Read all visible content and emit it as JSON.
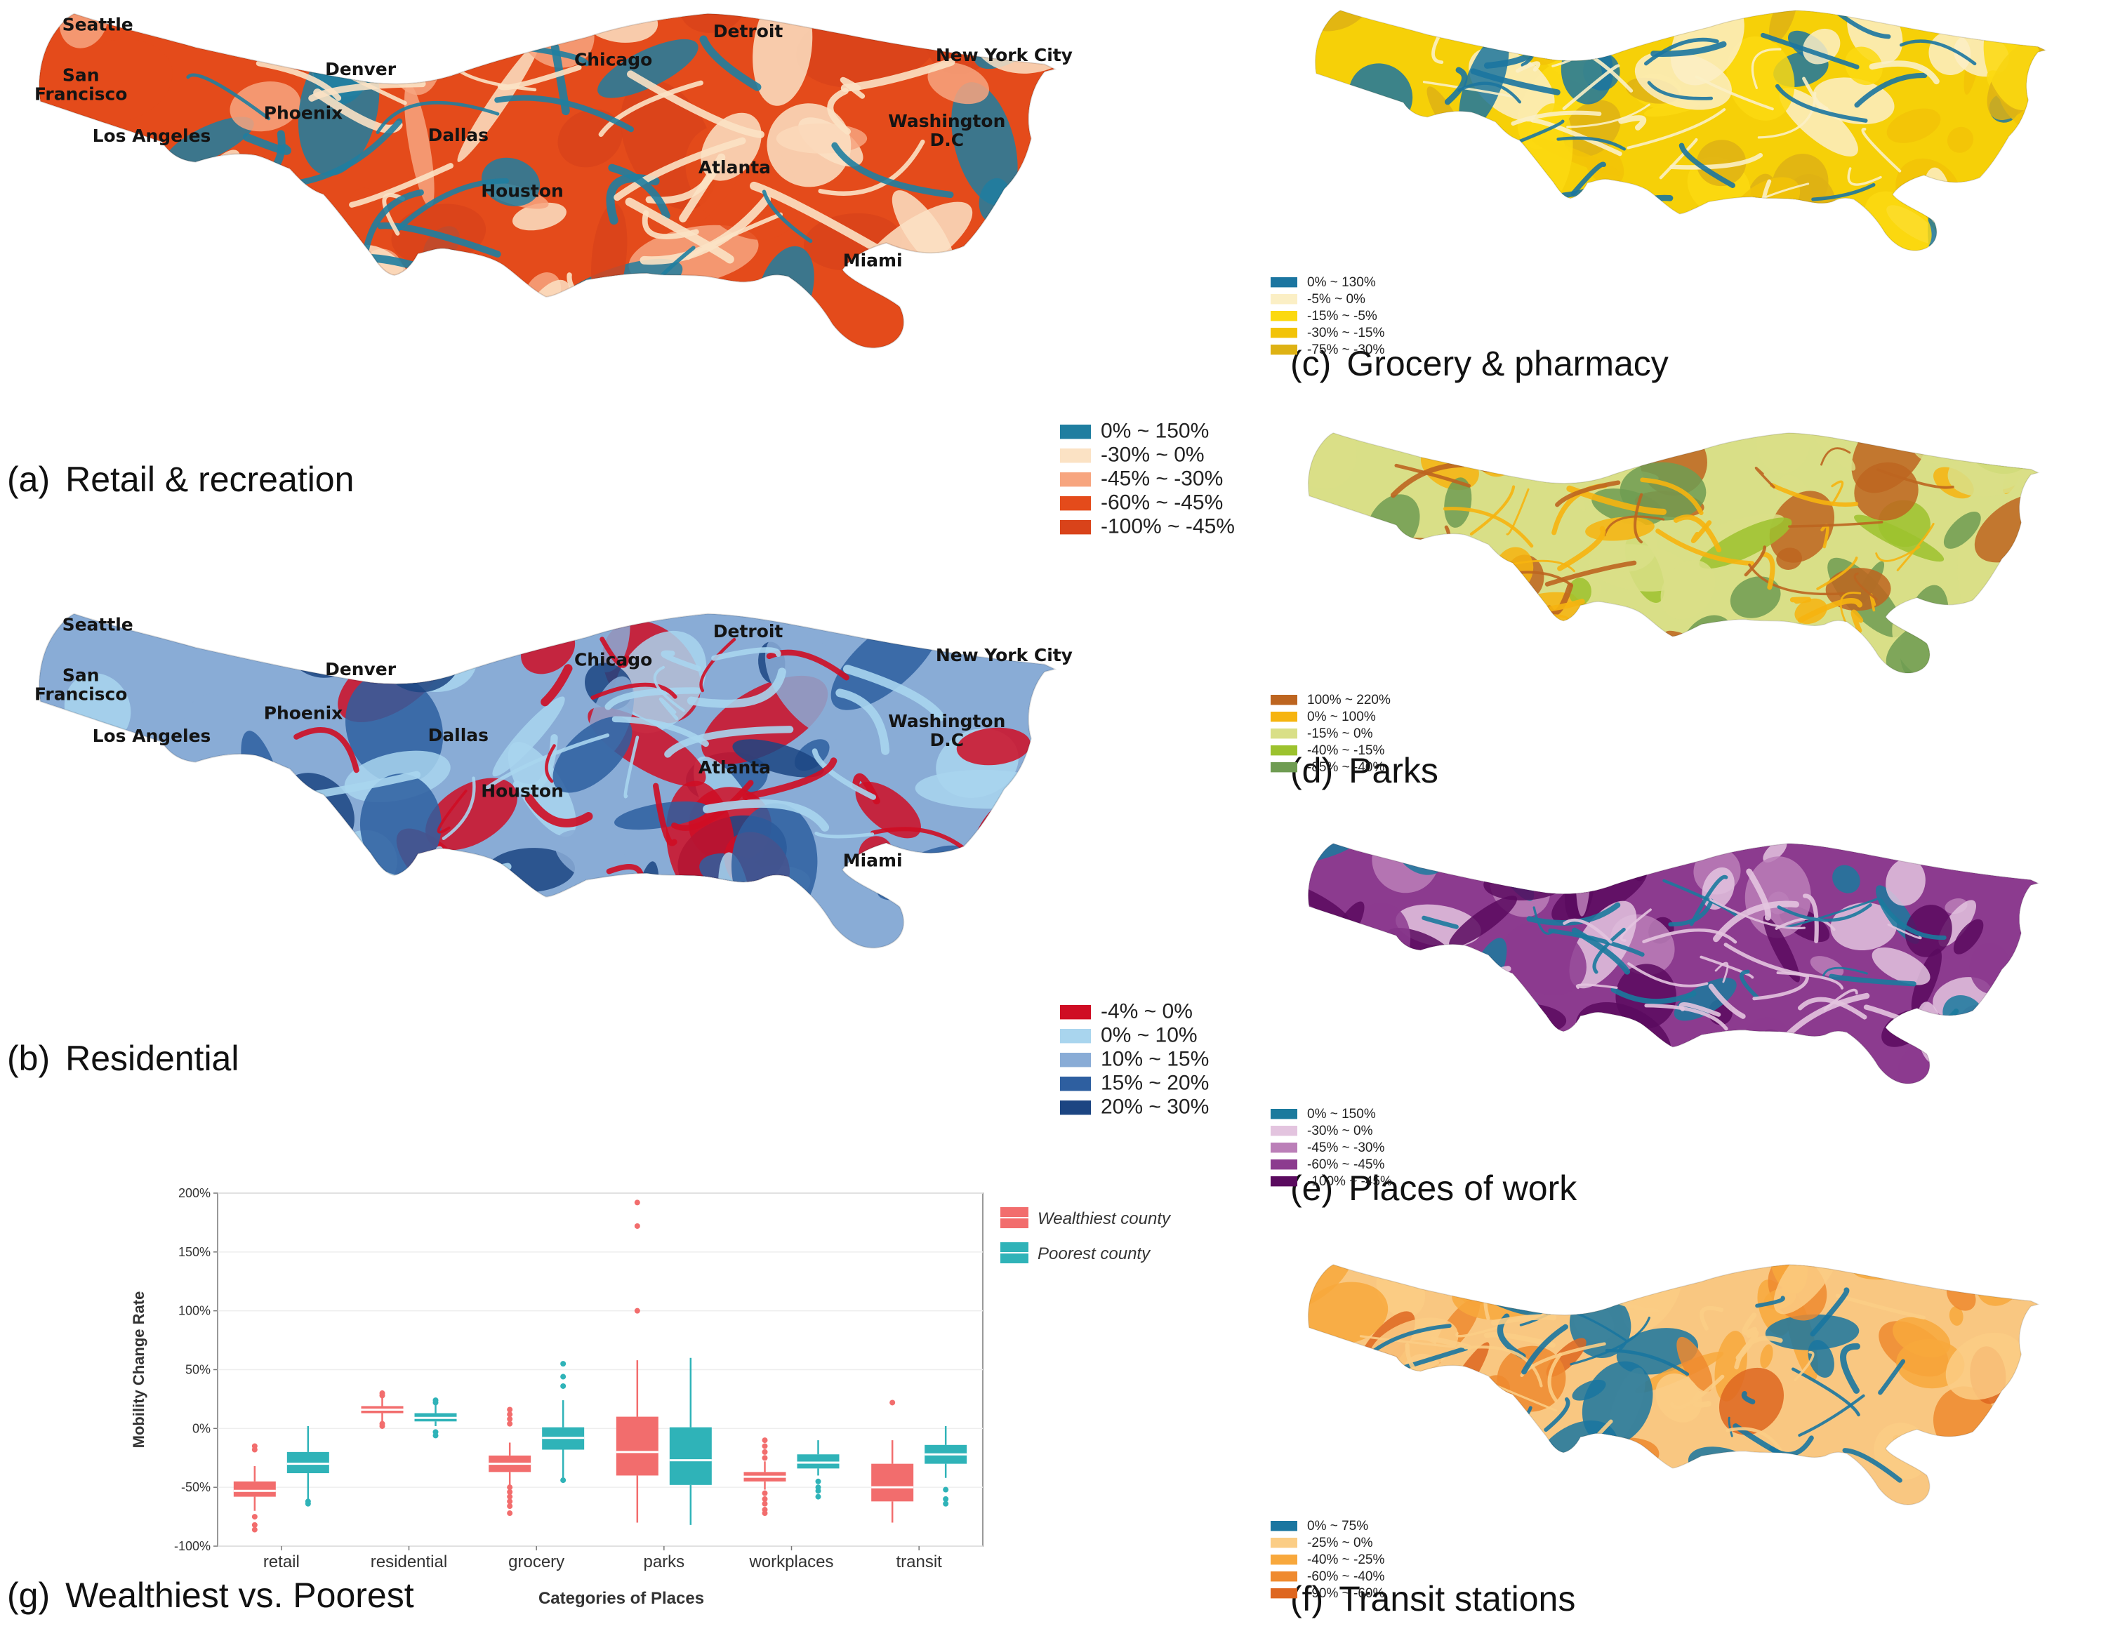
{
  "cities": [
    "Seattle",
    "San Francisco",
    "Denver",
    "Phoenix",
    "Los Angeles",
    "Dallas",
    "Houston",
    "Chicago",
    "Detroit",
    "Atlanta",
    "Miami",
    "New York City",
    "Washington D.C"
  ],
  "panels": [
    {
      "id": "a",
      "letter": "(a)",
      "title": "Retail & recreation",
      "show_cities": true,
      "base": "#e44b1b",
      "legend": [
        {
          "label": "0% ~ 150%",
          "color": "#1f7ea0"
        },
        {
          "label": "-30% ~ 0%",
          "color": "#fbe2c4"
        },
        {
          "label": "-45% ~ -30%",
          "color": "#f7a57f"
        },
        {
          "label": "-60% ~ -45%",
          "color": "#e44b1b"
        },
        {
          "label": "-100% ~ -45%",
          "color": "#d9431a"
        }
      ]
    },
    {
      "id": "b",
      "letter": "(b)",
      "title": "Residential",
      "show_cities": true,
      "base": "#89acd6",
      "legend": [
        {
          "label": "-4% ~ 0%",
          "color": "#cf0d24"
        },
        {
          "label": "0% ~ 10%",
          "color": "#a9d5ee"
        },
        {
          "label": "10% ~ 15%",
          "color": "#89acd6"
        },
        {
          "label": "15% ~ 20%",
          "color": "#2e5fa0"
        },
        {
          "label": "20% ~ 30%",
          "color": "#1c4582"
        }
      ]
    },
    {
      "id": "c",
      "letter": "(c)",
      "title": "Grocery & pharmacy",
      "show_cities": false,
      "base": "#f6d008",
      "legend": [
        {
          "label": "0% ~ 130%",
          "color": "#1b75a0"
        },
        {
          "label": "-5% ~ 0%",
          "color": "#fbefc5"
        },
        {
          "label": "-15% ~ -5%",
          "color": "#fbd910"
        },
        {
          "label": "-30% ~ -15%",
          "color": "#f2c307"
        },
        {
          "label": "-75% ~ -30%",
          "color": "#deb214"
        }
      ]
    },
    {
      "id": "d",
      "letter": "(d)",
      "title": "Parks",
      "show_cities": false,
      "base": "#d9df87",
      "legend": [
        {
          "label": "100% ~ 220%",
          "color": "#bd6520"
        },
        {
          "label": "0% ~ 100%",
          "color": "#f6b40f"
        },
        {
          "label": "-15% ~ 0%",
          "color": "#d9df87"
        },
        {
          "label": "-40% ~ -15%",
          "color": "#9cc22e"
        },
        {
          "label": "-85% ~ -40%",
          "color": "#6f9c52"
        }
      ]
    },
    {
      "id": "e",
      "letter": "(e)",
      "title": "Places of work",
      "show_cities": false,
      "base": "#8c3b8f",
      "legend": [
        {
          "label": "0% ~ 150%",
          "color": "#1b7a9d"
        },
        {
          "label": "-30% ~ 0%",
          "color": "#e3c4df"
        },
        {
          "label": "-45% ~ -30%",
          "color": "#bb7fb8"
        },
        {
          "label": "-60% ~ -45%",
          "color": "#8c3b8f"
        },
        {
          "label": "-100% ~ -45%",
          "color": "#5a0b5f"
        }
      ]
    },
    {
      "id": "f",
      "letter": "(f)",
      "title": "Transit stations",
      "show_cities": false,
      "base": "#f9c781",
      "legend": [
        {
          "label": "0% ~ 75%",
          "color": "#1a76a0"
        },
        {
          "label": "-25% ~ 0%",
          "color": "#fbcd85"
        },
        {
          "label": "-40% ~ -25%",
          "color": "#f8a83c"
        },
        {
          "label": "-60% ~ -40%",
          "color": "#ef8a2f"
        },
        {
          "label": "-90% ~ -60%",
          "color": "#de6620"
        }
      ]
    }
  ],
  "boxplot": {
    "letter": "(g)",
    "title": "Wealthiest vs. Poorest",
    "chart_data": {
      "type": "box",
      "categories": [
        "retail",
        "residential",
        "grocery",
        "parks",
        "workplaces",
        "transit"
      ],
      "xlabel": "Categories of Places",
      "ylabel": "Mobility Change Rate",
      "ylim": [
        -100,
        200
      ],
      "yticks": [
        -100,
        -50,
        0,
        50,
        100,
        150,
        200
      ],
      "ytick_labels": [
        "-100%",
        "-50%",
        "0%",
        "50%",
        "100%",
        "150%",
        "200%"
      ],
      "legend_position": "top-right",
      "series": [
        {
          "name": "Wealthiest county",
          "color": "#f26d6d",
          "boxes": [
            {
              "min": -70,
              "q1": -58,
              "median": -53,
              "q3": -45,
              "max": -32,
              "outliers": [
                -15,
                -18,
                -75,
                -82,
                -86
              ]
            },
            {
              "min": 5,
              "q1": 13,
              "median": 16,
              "q3": 19,
              "max": 26,
              "outliers": [
                2,
                4,
                28,
                30
              ]
            },
            {
              "min": -48,
              "q1": -37,
              "median": -30,
              "q3": -23,
              "max": -12,
              "outliers": [
                -50,
                -54,
                -58,
                -62,
                -66,
                -72,
                4,
                8,
                12,
                16
              ]
            },
            {
              "min": -80,
              "q1": -40,
              "median": -20,
              "q3": 10,
              "max": 58,
              "outliers": [
                100,
                172,
                192
              ]
            },
            {
              "min": -52,
              "q1": -45,
              "median": -41,
              "q3": -37,
              "max": -28,
              "outliers": [
                -55,
                -60,
                -64,
                -69,
                -72,
                -25,
                -20,
                -15,
                -10
              ]
            },
            {
              "min": -80,
              "q1": -62,
              "median": -50,
              "q3": -30,
              "max": -10,
              "outliers": [
                22
              ]
            }
          ]
        },
        {
          "name": "Poorest county",
          "color": "#2fb3b8",
          "boxes": [
            {
              "min": -60,
              "q1": -38,
              "median": -30,
              "q3": -20,
              "max": 2,
              "outliers": [
                -62,
                -64
              ]
            },
            {
              "min": 2,
              "q1": 6,
              "median": 9,
              "q3": 13,
              "max": 20,
              "outliers": [
                -3,
                -6,
                22,
                24
              ]
            },
            {
              "min": -42,
              "q1": -18,
              "median": -8,
              "q3": 1,
              "max": 24,
              "outliers": [
                -44,
                36,
                44,
                55
              ]
            },
            {
              "min": -82,
              "q1": -48,
              "median": -27,
              "q3": 1,
              "max": 60,
              "outliers": []
            },
            {
              "min": -40,
              "q1": -34,
              "median": -29,
              "q3": -22,
              "max": -10,
              "outliers": [
                -45,
                -50,
                -53,
                -58
              ]
            },
            {
              "min": -42,
              "q1": -30,
              "median": -22,
              "q3": -14,
              "max": 2,
              "outliers": [
                -52,
                -60,
                -64
              ]
            }
          ]
        }
      ]
    }
  }
}
